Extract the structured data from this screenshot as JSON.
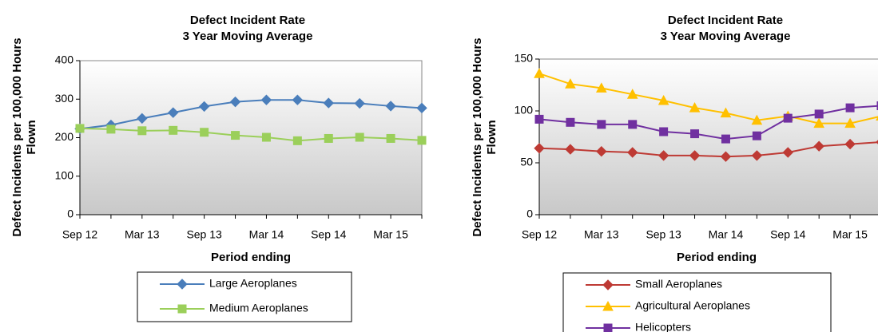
{
  "chart_data": [
    {
      "type": "line",
      "title": [
        "Defect Incident Rate",
        "3 Year Moving Average"
      ],
      "ylabel": [
        "Defect Incidents per 100,000 Hours",
        "Flown"
      ],
      "xlabel": "Period ending",
      "categories": [
        "Sep 12",
        null,
        "Mar 13",
        null,
        "Sep 13",
        null,
        "Mar 14",
        null,
        "Sep 14",
        null,
        "Mar 15",
        null
      ],
      "ylim": [
        0,
        400
      ],
      "yticks": [
        0,
        100,
        200,
        300,
        400
      ],
      "series": [
        {
          "name": "Large Aeroplanes",
          "color": "#4a7ebb",
          "marker": "diamond",
          "values": [
            223,
            233,
            250,
            265,
            281,
            293,
            298,
            298,
            290,
            289,
            282,
            277
          ]
        },
        {
          "name": "Medium Aeroplanes",
          "color": "#9bcf5a",
          "marker": "square",
          "values": [
            224,
            222,
            218,
            219,
            214,
            206,
            201,
            192,
            198,
            201,
            198,
            193
          ]
        }
      ]
    },
    {
      "type": "line",
      "title": [
        "Defect Incident Rate",
        "3 Year Moving Average"
      ],
      "ylabel": [
        "Defect Incidents per 100,000 Hours",
        "Flown"
      ],
      "xlabel": "Period ending",
      "categories": [
        "Sep 12",
        null,
        "Mar 13",
        null,
        "Sep 13",
        null,
        "Mar 14",
        null,
        "Sep 14",
        null,
        "Mar 15",
        null
      ],
      "ylim": [
        0,
        150
      ],
      "yticks": [
        0,
        50,
        100,
        150
      ],
      "series": [
        {
          "name": "Small Aeroplanes",
          "color": "#be3a34",
          "marker": "diamond",
          "values": [
            64,
            63,
            61,
            60,
            57,
            57,
            56,
            57,
            60,
            66,
            68,
            70
          ]
        },
        {
          "name": "Agricultural Aeroplanes",
          "color": "#ffc000",
          "marker": "triangle",
          "values": [
            136,
            126,
            122,
            116,
            110,
            103,
            98,
            91,
            95,
            88,
            88,
            95
          ]
        },
        {
          "name": "Helicopters",
          "color": "#7030a0",
          "marker": "square",
          "values": [
            92,
            89,
            87,
            87,
            80,
            78,
            73,
            76,
            93,
            97,
            103,
            105
          ]
        }
      ]
    }
  ]
}
